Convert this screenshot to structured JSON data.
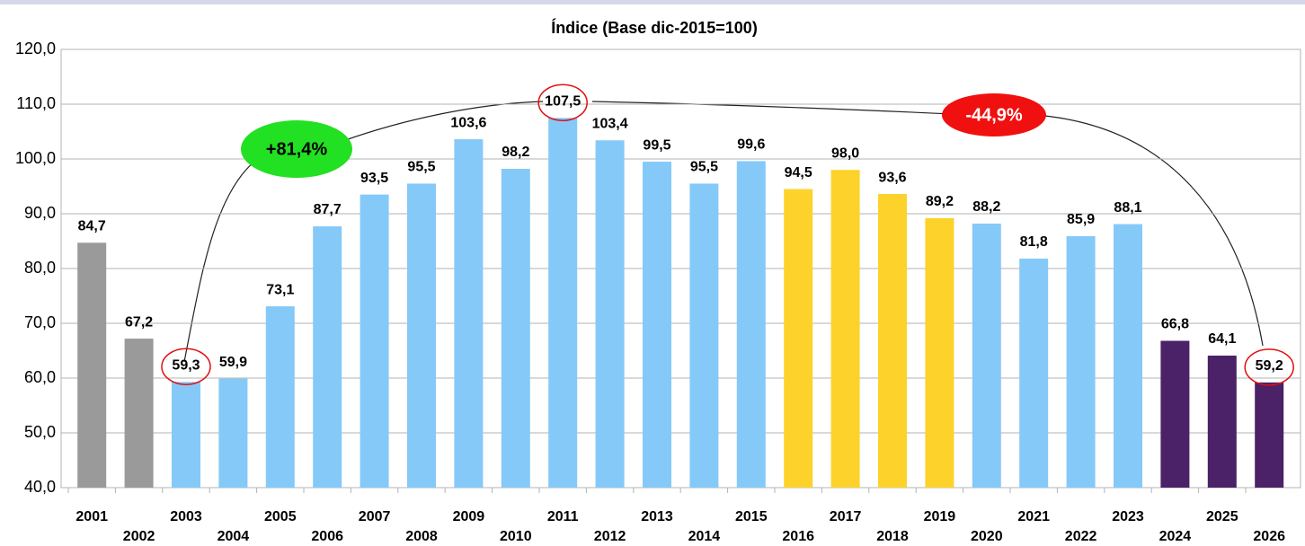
{
  "chart_data": {
    "type": "bar",
    "title": "Índice (Base dic-2015=100)",
    "categories": [
      "2001",
      "2002",
      "2003",
      "2004",
      "2005",
      "2006",
      "2007",
      "2008",
      "2009",
      "2010",
      "2011",
      "2012",
      "2013",
      "2014",
      "2015",
      "2016",
      "2017",
      "2018",
      "2019",
      "2020",
      "2021",
      "2022",
      "2023",
      "2024",
      "2025",
      "2026"
    ],
    "values": [
      84.7,
      67.2,
      59.3,
      59.9,
      73.1,
      87.7,
      93.5,
      95.5,
      103.6,
      98.2,
      107.5,
      103.4,
      99.5,
      95.5,
      99.6,
      94.5,
      98.0,
      93.6,
      89.2,
      88.2,
      81.8,
      85.9,
      88.1,
      66.8,
      64.1,
      59.2
    ],
    "value_labels": [
      "84,7",
      "67,2",
      "59,3",
      "59,9",
      "73,1",
      "87,7",
      "93,5",
      "95,5",
      "103,6",
      "98,2",
      "107,5",
      "103,4",
      "99,5",
      "95,5",
      "99,6",
      "94,5",
      "98,0",
      "93,6",
      "89,2",
      "88,2",
      "81,8",
      "85,9",
      "88,1",
      "66,8",
      "64,1",
      "59,2"
    ],
    "colors": [
      "#9a9a9a",
      "#9a9a9a",
      "#85c9f9",
      "#85c9f9",
      "#85c9f9",
      "#85c9f9",
      "#85c9f9",
      "#85c9f9",
      "#85c9f9",
      "#85c9f9",
      "#85c9f9",
      "#85c9f9",
      "#85c9f9",
      "#85c9f9",
      "#85c9f9",
      "#fdd22a",
      "#fdd22a",
      "#fdd22a",
      "#fdd22a",
      "#85c9f9",
      "#85c9f9",
      "#85c9f9",
      "#85c9f9",
      "#4b2167",
      "#4b2167",
      "#4b2167"
    ],
    "ylim": [
      40,
      120
    ],
    "yticks": [
      {
        "value": 40,
        "label": "40,0"
      },
      {
        "value": 50,
        "label": "50,0"
      },
      {
        "value": 60,
        "label": "60,0"
      },
      {
        "value": 70,
        "label": "70,0"
      },
      {
        "value": 80,
        "label": "80,0"
      },
      {
        "value": 90,
        "label": "90,0"
      },
      {
        "value": 100,
        "label": "100,0"
      },
      {
        "value": 110,
        "label": "110,0"
      },
      {
        "value": 120,
        "label": "120,0"
      }
    ],
    "grid": true,
    "annotations": [
      {
        "text": "+81,4%",
        "color": "#22e022"
      },
      {
        "text": "-44,9%",
        "color": "#f01010"
      }
    ]
  }
}
